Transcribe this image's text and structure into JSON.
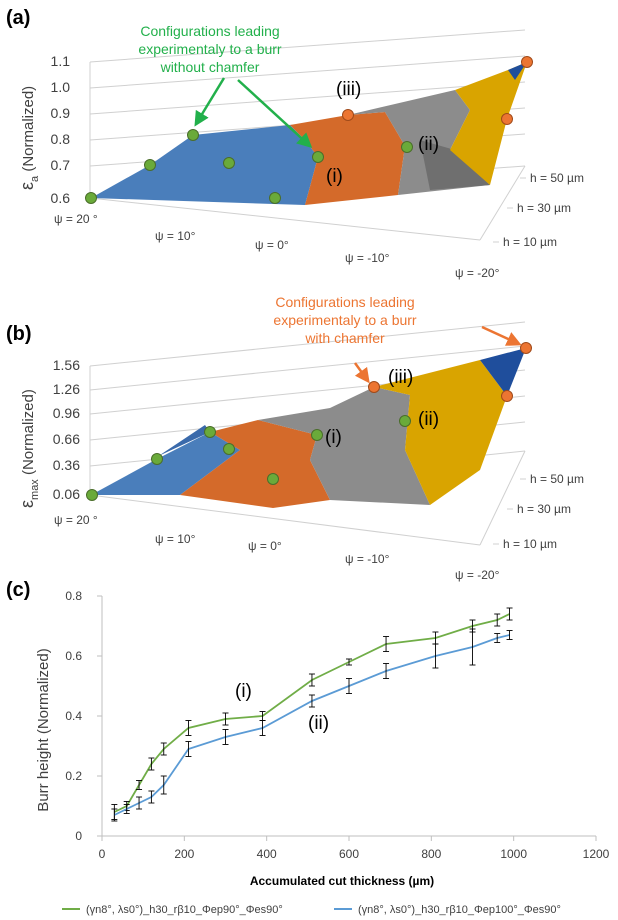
{
  "colors": {
    "blue": "#4a7ebb",
    "dark_blue": "#1f4e9c",
    "orange": "#d46a2a",
    "gray": "#8c8c8c",
    "gold": "#d9a400",
    "green_marker": "#6aaa3a",
    "orange_marker": "#ec7532",
    "annot_green": "#22b04b",
    "annot_orange": "#ec7532",
    "series1": "#70ad47",
    "series2": "#5b9bd5"
  },
  "chart_data": [
    {
      "panel": "(a)",
      "type": "area",
      "surface": "3d",
      "ylabel": "εa (Normalized)",
      "ylabel_main": "ε",
      "ylabel_sub": "a",
      "ylabel_rest": " (Normalized)",
      "y_ticks": [
        "1.1",
        "1.0",
        "0.9",
        "0.8",
        "0.7",
        "0.6"
      ],
      "psi_labels": [
        "ψ = 20 °",
        "ψ = 10°",
        "ψ = 0°",
        "ψ = -10°",
        "ψ = -20°"
      ],
      "h_labels": [
        "h = 50 µm",
        "h = 30 µm",
        "h = 10 µm"
      ],
      "annotation": "Configurations leading experimentaly to a burr without chamfer",
      "annotation_lines": [
        "Configurations leading",
        "experimentaly to a burr",
        "without chamfer"
      ],
      "markers": [
        "(i)",
        "(ii)",
        "(iii)"
      ]
    },
    {
      "panel": "(b)",
      "type": "area",
      "surface": "3d",
      "ylabel": "εmax (Normalized)",
      "ylabel_main": "ε",
      "ylabel_sub": "max",
      "ylabel_rest": " (Normalized)",
      "y_ticks": [
        "1.56",
        "1.26",
        "0.96",
        "0.66",
        "0.36",
        "0.06"
      ],
      "psi_labels": [
        "ψ = 20 °",
        "ψ = 10°",
        "ψ = 0°",
        "ψ = -10°",
        "ψ = -20°"
      ],
      "h_labels": [
        "h = 50 µm",
        "h = 30 µm",
        "h = 10 µm"
      ],
      "annotation": "Configurations leading experimentaly to a burr with chamfer",
      "annotation_lines": [
        "Configurations leading",
        "experimentaly to a burr",
        "with chamfer"
      ],
      "markers": [
        "(i)",
        "(ii)",
        "(iii)"
      ]
    },
    {
      "panel": "(c)",
      "type": "line",
      "xlabel": "Accumulated cut thickness (µm)",
      "ylabel": "Burr height (Normalized)",
      "xlim": [
        0,
        1200
      ],
      "ylim": [
        0,
        0.8
      ],
      "x_ticks": [
        0,
        200,
        400,
        600,
        800,
        1000,
        1200
      ],
      "y_ticks": [
        0,
        0.2,
        0.4,
        0.6,
        0.8
      ],
      "grid": false,
      "legend_position": "bottom",
      "series": [
        {
          "name": "(γn8°, λs0°)_h30_rβ10_Φep90°_Φes90°",
          "x": [
            30,
            60,
            90,
            120,
            150,
            210,
            300,
            390,
            510,
            600,
            690,
            810,
            900,
            960,
            990
          ],
          "y": [
            0.08,
            0.1,
            0.17,
            0.24,
            0.29,
            0.36,
            0.39,
            0.4,
            0.52,
            0.58,
            0.64,
            0.66,
            0.7,
            0.72,
            0.74
          ],
          "err": [
            0.025,
            0.015,
            0.015,
            0.02,
            0.02,
            0.025,
            0.02,
            0.015,
            0.02,
            0.01,
            0.025,
            0.02,
            0.02,
            0.02,
            0.02
          ]
        },
        {
          "name": "(γn8°, λs0°)_h30_rβ10_Φep100°_Φes90°",
          "x": [
            30,
            60,
            90,
            120,
            150,
            210,
            300,
            390,
            510,
            600,
            690,
            810,
            900,
            960,
            990
          ],
          "y": [
            0.07,
            0.09,
            0.11,
            0.13,
            0.17,
            0.29,
            0.33,
            0.36,
            0.45,
            0.5,
            0.55,
            0.6,
            0.63,
            0.66,
            0.67
          ],
          "err": [
            0.02,
            0.015,
            0.02,
            0.02,
            0.03,
            0.025,
            0.025,
            0.025,
            0.02,
            0.025,
            0.025,
            0.04,
            0.06,
            0.015,
            0.015
          ]
        }
      ],
      "annotations": [
        "(i)",
        "(ii)"
      ]
    }
  ]
}
